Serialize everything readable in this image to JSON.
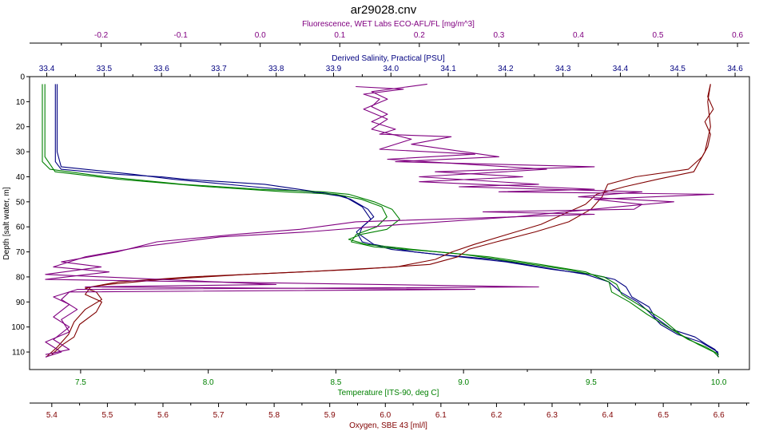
{
  "chart_data": {
    "type": "line",
    "title": "ar29028.cnv",
    "grid": false,
    "legend": "none",
    "y_axis": {
      "label": "Depth [salt water, m]",
      "range": [
        0,
        117
      ],
      "inverted": true,
      "ticks": [
        0,
        10,
        20,
        30,
        40,
        50,
        60,
        70,
        80,
        90,
        100,
        110
      ],
      "tick_labels": [
        "0",
        "10",
        "20",
        "30",
        "40",
        "50",
        "60",
        "70",
        "80",
        "90",
        "100",
        "110"
      ]
    },
    "x_axes": [
      {
        "id": "fluorescence",
        "position": "top-outer",
        "label": "Fluorescence, WET Labs ECO-AFL/FL [mg/m^3]",
        "color": "#800080",
        "range": [
          -0.29,
          0.615
        ],
        "ticks": [
          -0.2,
          -0.1,
          0.0,
          0.1,
          0.2,
          0.3,
          0.4,
          0.5,
          0.6
        ],
        "tick_labels": [
          "-0.2",
          "-0.1",
          "0.0",
          "0.1",
          "0.2",
          "0.3",
          "0.4",
          "0.5",
          "0.6"
        ]
      },
      {
        "id": "salinity",
        "position": "top-inner",
        "label": "Derived Salinity, Practical [PSU]",
        "color": "#000080",
        "range": [
          33.37,
          34.625
        ],
        "ticks": [
          33.4,
          33.5,
          33.6,
          33.7,
          33.8,
          33.9,
          34.0,
          34.1,
          34.2,
          34.3,
          34.4,
          34.5,
          34.6
        ],
        "tick_labels": [
          "33.4",
          "33.5",
          "33.6",
          "33.7",
          "33.8",
          "33.9",
          "34.0",
          "34.1",
          "34.2",
          "34.3",
          "34.4",
          "34.5",
          "34.6"
        ]
      },
      {
        "id": "temperature",
        "position": "bottom-inner",
        "label": "Temperature [ITS-90, deg C]",
        "color": "#008000",
        "range": [
          7.3,
          10.12
        ],
        "ticks": [
          7.5,
          8.0,
          8.5,
          9.0,
          9.5,
          10.0
        ],
        "tick_labels": [
          "7.5",
          "8.0",
          "8.5",
          "9.0",
          "9.5",
          "10.0"
        ]
      },
      {
        "id": "oxygen",
        "position": "bottom-outer",
        "label": "Oxygen, SBE 43 [ml/l]",
        "color": "#800000",
        "range": [
          5.36,
          6.655
        ],
        "ticks": [
          5.4,
          5.5,
          5.6,
          5.7,
          5.8,
          5.9,
          6.0,
          6.1,
          6.2,
          6.3,
          6.4,
          6.5,
          6.6
        ],
        "tick_labels": [
          "5.4",
          "5.5",
          "5.6",
          "5.7",
          "5.8",
          "5.9",
          "6.0",
          "6.1",
          "6.2",
          "6.3",
          "6.4",
          "6.5",
          "6.6"
        ]
      }
    ],
    "series": [
      {
        "axis": "salinity",
        "color": "#000080",
        "points": [
          [
            33.415,
            3
          ],
          [
            33.415,
            20
          ],
          [
            33.415,
            34
          ],
          [
            33.425,
            37
          ],
          [
            33.52,
            39
          ],
          [
            33.6,
            40
          ],
          [
            33.64,
            41
          ],
          [
            33.78,
            43
          ],
          [
            33.84,
            45
          ],
          [
            33.9,
            47
          ],
          [
            33.93,
            49
          ],
          [
            33.96,
            53
          ],
          [
            33.97,
            56
          ],
          [
            33.95,
            60
          ],
          [
            33.945,
            63
          ],
          [
            33.97,
            67
          ],
          [
            34.04,
            70
          ],
          [
            34.12,
            72
          ],
          [
            34.2,
            74
          ],
          [
            34.28,
            77
          ],
          [
            34.35,
            79
          ],
          [
            34.39,
            81
          ],
          [
            34.41,
            84
          ],
          [
            34.42,
            88
          ],
          [
            34.45,
            92
          ],
          [
            34.46,
            96
          ],
          [
            34.49,
            101
          ],
          [
            34.53,
            104
          ],
          [
            34.55,
            107
          ],
          [
            34.565,
            109
          ],
          [
            34.57,
            111
          ]
        ]
      },
      {
        "axis": "salinity",
        "color": "#000080",
        "points": [
          [
            33.418,
            3
          ],
          [
            33.418,
            30
          ],
          [
            33.425,
            36
          ],
          [
            33.55,
            39
          ],
          [
            33.62,
            41
          ],
          [
            33.76,
            44
          ],
          [
            33.86,
            46
          ],
          [
            33.92,
            48
          ],
          [
            33.95,
            52
          ],
          [
            33.965,
            57
          ],
          [
            33.94,
            62
          ],
          [
            33.95,
            66
          ],
          [
            34.0,
            69
          ],
          [
            34.08,
            71
          ],
          [
            34.18,
            73
          ],
          [
            34.26,
            76
          ],
          [
            34.34,
            79
          ],
          [
            34.38,
            82
          ],
          [
            34.4,
            86
          ],
          [
            34.43,
            90
          ],
          [
            34.45,
            94
          ],
          [
            34.47,
            99
          ],
          [
            34.5,
            103
          ],
          [
            34.54,
            106
          ],
          [
            34.57,
            110
          ],
          [
            34.57,
            112
          ]
        ]
      },
      {
        "axis": "temperature",
        "color": "#008000",
        "points": [
          [
            7.35,
            3
          ],
          [
            7.35,
            20
          ],
          [
            7.35,
            34
          ],
          [
            7.38,
            37
          ],
          [
            7.6,
            40
          ],
          [
            7.9,
            43
          ],
          [
            8.2,
            45
          ],
          [
            8.45,
            46
          ],
          [
            8.55,
            47
          ],
          [
            8.65,
            50
          ],
          [
            8.72,
            53
          ],
          [
            8.75,
            57
          ],
          [
            8.7,
            61
          ],
          [
            8.6,
            63
          ],
          [
            8.55,
            65
          ],
          [
            8.62,
            67
          ],
          [
            8.8,
            69
          ],
          [
            9.0,
            71
          ],
          [
            9.2,
            74
          ],
          [
            9.4,
            77
          ],
          [
            9.55,
            80
          ],
          [
            9.6,
            83
          ],
          [
            9.62,
            87
          ],
          [
            9.7,
            92
          ],
          [
            9.78,
            97
          ],
          [
            9.85,
            103
          ],
          [
            9.92,
            107
          ],
          [
            9.98,
            110
          ],
          [
            10.0,
            112
          ]
        ]
      },
      {
        "axis": "temperature",
        "color": "#008000",
        "points": [
          [
            7.36,
            3
          ],
          [
            7.36,
            32
          ],
          [
            7.4,
            38
          ],
          [
            7.65,
            41
          ],
          [
            8.0,
            44
          ],
          [
            8.3,
            46
          ],
          [
            8.5,
            47
          ],
          [
            8.6,
            49
          ],
          [
            8.68,
            52
          ],
          [
            8.7,
            56
          ],
          [
            8.66,
            60
          ],
          [
            8.58,
            63
          ],
          [
            8.56,
            66
          ],
          [
            8.65,
            68
          ],
          [
            8.9,
            70
          ],
          [
            9.1,
            72
          ],
          [
            9.3,
            75
          ],
          [
            9.48,
            78
          ],
          [
            9.57,
            82
          ],
          [
            9.58,
            86
          ],
          [
            9.65,
            90
          ],
          [
            9.72,
            95
          ],
          [
            9.8,
            100
          ],
          [
            9.88,
            105
          ],
          [
            9.95,
            108
          ],
          [
            10.0,
            111
          ]
        ]
      },
      {
        "axis": "oxygen",
        "color": "#800000",
        "points": [
          [
            6.585,
            3
          ],
          [
            6.58,
            8
          ],
          [
            6.59,
            13
          ],
          [
            6.575,
            18
          ],
          [
            6.585,
            23
          ],
          [
            6.58,
            28
          ],
          [
            6.57,
            32
          ],
          [
            6.545,
            37
          ],
          [
            6.45,
            40
          ],
          [
            6.4,
            43
          ],
          [
            6.39,
            48
          ],
          [
            6.37,
            53
          ],
          [
            6.33,
            58
          ],
          [
            6.27,
            62
          ],
          [
            6.2,
            66
          ],
          [
            6.15,
            69
          ],
          [
            6.13,
            72
          ],
          [
            6.08,
            75
          ],
          [
            5.95,
            77
          ],
          [
            5.75,
            79
          ],
          [
            5.6,
            81
          ],
          [
            5.5,
            83
          ],
          [
            5.46,
            84.5
          ],
          [
            5.48,
            86
          ],
          [
            5.49,
            89
          ],
          [
            5.46,
            93
          ],
          [
            5.44,
            98
          ],
          [
            5.43,
            103
          ],
          [
            5.41,
            108
          ],
          [
            5.4,
            110
          ],
          [
            5.39,
            112
          ]
        ]
      },
      {
        "axis": "oxygen",
        "color": "#800000",
        "points": [
          [
            6.585,
            3
          ],
          [
            6.58,
            10
          ],
          [
            6.585,
            20
          ],
          [
            6.575,
            30
          ],
          [
            6.555,
            38
          ],
          [
            6.49,
            41
          ],
          [
            6.43,
            44
          ],
          [
            6.38,
            47
          ],
          [
            6.36,
            51
          ],
          [
            6.32,
            55
          ],
          [
            6.28,
            59
          ],
          [
            6.22,
            63
          ],
          [
            6.16,
            67
          ],
          [
            6.12,
            70
          ],
          [
            6.09,
            73
          ],
          [
            6.02,
            76
          ],
          [
            5.85,
            78
          ],
          [
            5.65,
            80
          ],
          [
            5.52,
            82
          ],
          [
            5.47,
            84
          ],
          [
            5.46,
            87
          ],
          [
            5.49,
            90
          ],
          [
            5.48,
            94
          ],
          [
            5.45,
            99
          ],
          [
            5.44,
            104
          ],
          [
            5.42,
            107
          ],
          [
            5.4,
            111
          ]
        ]
      },
      {
        "axis": "fluorescence",
        "color": "#800080",
        "points": [
          [
            0.12,
            4
          ],
          [
            0.18,
            5
          ],
          [
            0.13,
            7
          ],
          [
            0.15,
            9
          ],
          [
            0.14,
            12
          ],
          [
            0.16,
            15
          ],
          [
            0.14,
            18
          ],
          [
            0.17,
            21
          ],
          [
            0.15,
            23
          ],
          [
            0.24,
            24
          ],
          [
            0.19,
            27
          ],
          [
            0.3,
            32
          ],
          [
            0.17,
            34
          ],
          [
            0.42,
            36
          ],
          [
            0.22,
            38
          ],
          [
            0.33,
            40
          ],
          [
            0.2,
            42
          ],
          [
            0.42,
            45
          ],
          [
            0.3,
            46
          ],
          [
            0.57,
            47
          ],
          [
            0.42,
            49
          ],
          [
            0.48,
            51
          ],
          [
            0.47,
            53
          ],
          [
            0.28,
            54
          ],
          [
            0.42,
            55
          ],
          [
            0.12,
            58
          ],
          [
            0.05,
            61
          ],
          [
            -0.03,
            63
          ],
          [
            -0.13,
            66
          ],
          [
            -0.18,
            70
          ],
          [
            -0.25,
            74
          ],
          [
            -0.2,
            76
          ],
          [
            -0.27,
            79
          ],
          [
            0.02,
            83
          ],
          [
            -0.22,
            84
          ],
          [
            0.27,
            85
          ],
          [
            -0.24,
            86
          ],
          [
            -0.25,
            89
          ],
          [
            -0.23,
            93
          ],
          [
            -0.25,
            97
          ],
          [
            -0.24,
            102
          ],
          [
            -0.27,
            106
          ],
          [
            -0.25,
            110
          ],
          [
            -0.27,
            112
          ]
        ]
      },
      {
        "axis": "fluorescence",
        "color": "#800080",
        "points": [
          [
            0.21,
            3
          ],
          [
            0.14,
            6
          ],
          [
            0.16,
            9
          ],
          [
            0.13,
            13
          ],
          [
            0.16,
            17
          ],
          [
            0.14,
            21
          ],
          [
            0.19,
            25
          ],
          [
            0.15,
            29
          ],
          [
            0.27,
            31
          ],
          [
            0.16,
            33
          ],
          [
            0.36,
            37
          ],
          [
            0.2,
            40
          ],
          [
            0.35,
            43
          ],
          [
            0.25,
            44
          ],
          [
            0.48,
            46
          ],
          [
            0.4,
            48
          ],
          [
            0.52,
            50
          ],
          [
            0.45,
            52
          ],
          [
            0.32,
            56
          ],
          [
            0.18,
            59
          ],
          [
            0.06,
            62
          ],
          [
            -0.05,
            64
          ],
          [
            -0.15,
            68
          ],
          [
            -0.22,
            72
          ],
          [
            -0.26,
            76
          ],
          [
            -0.19,
            78
          ],
          [
            -0.27,
            81
          ],
          [
            0.35,
            84
          ],
          [
            -0.23,
            85
          ],
          [
            -0.26,
            88
          ],
          [
            -0.24,
            91
          ],
          [
            -0.26,
            96
          ],
          [
            -0.24,
            100
          ],
          [
            -0.26,
            105
          ],
          [
            -0.24,
            109
          ],
          [
            -0.27,
            111
          ]
        ]
      }
    ]
  }
}
